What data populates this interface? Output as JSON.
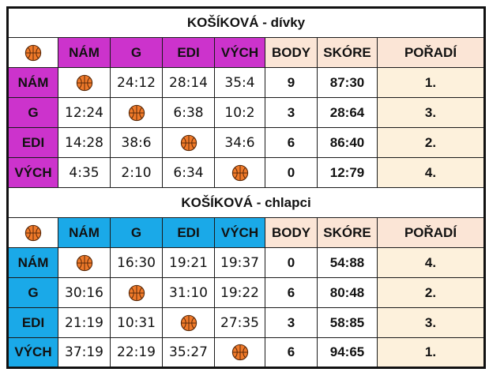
{
  "colors": {
    "girls_accent": "#cc33cc",
    "boys_accent": "#1aa9e8",
    "header_peach": "#fbe5d6",
    "rank_cream": "#fdf1dc",
    "ball_orange": "#f07a2a"
  },
  "icon": "basketball-icon",
  "groups": [
    {
      "title": "KOŠÍKOVÁ - dívky",
      "headers": {
        "teams": [
          "NÁM",
          "G",
          "EDI",
          "VÝCH"
        ],
        "body": "BODY",
        "skore": "SKÓRE",
        "poradi": "POŘADÍ"
      },
      "rows": [
        {
          "team": "NÁM",
          "cells": [
            "",
            "24:12",
            "28:14",
            "35:4"
          ],
          "body": "9",
          "skore": "87:30",
          "poradi": "1."
        },
        {
          "team": "G",
          "cells": [
            "12:24",
            "",
            "6:38",
            "10:2"
          ],
          "body": "3",
          "skore": "28:64",
          "poradi": "3."
        },
        {
          "team": "EDI",
          "cells": [
            "14:28",
            "38:6",
            "",
            "34:6"
          ],
          "body": "6",
          "skore": "86:40",
          "poradi": "2."
        },
        {
          "team": "VÝCH",
          "cells": [
            "4:35",
            "2:10",
            "6:34",
            ""
          ],
          "body": "0",
          "skore": "12:79",
          "poradi": "4."
        }
      ]
    },
    {
      "title": "KOŠÍKOVÁ - chlapci",
      "headers": {
        "teams": [
          "NÁM",
          "G",
          "EDI",
          "VÝCH"
        ],
        "body": "BODY",
        "skore": "SKÓRE",
        "poradi": "POŘADÍ"
      },
      "rows": [
        {
          "team": "NÁM",
          "cells": [
            "",
            "16:30",
            "19:21",
            "19:37"
          ],
          "body": "0",
          "skore": "54:88",
          "poradi": "4."
        },
        {
          "team": "G",
          "cells": [
            "30:16",
            "",
            "31:10",
            "19:22"
          ],
          "body": "6",
          "skore": "80:48",
          "poradi": "2."
        },
        {
          "team": "EDI",
          "cells": [
            "21:19",
            "10:31",
            "",
            "27:35"
          ],
          "body": "3",
          "skore": "58:85",
          "poradi": "3."
        },
        {
          "team": "VÝCH",
          "cells": [
            "37:19",
            "22:19",
            "35:27",
            ""
          ],
          "body": "6",
          "skore": "94:65",
          "poradi": "1."
        }
      ]
    }
  ]
}
